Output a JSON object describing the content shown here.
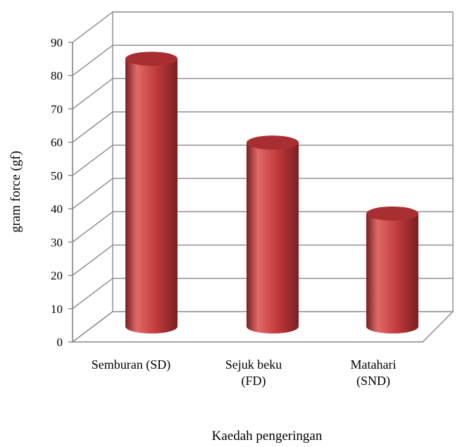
{
  "chart_data": {
    "type": "bar",
    "style": "3d-cylinder",
    "categories": [
      [
        "Semburan (SD)"
      ],
      [
        "Sejuk beku",
        "(FD)"
      ],
      [
        "Matahari",
        "(SND)"
      ]
    ],
    "values": [
      83,
      57,
      35
    ],
    "xlabel": "Kaedah pengeringan",
    "ylabel": "gram force (gf)",
    "ylim": [
      0,
      90
    ],
    "yticks": [
      0,
      10,
      20,
      30,
      40,
      50,
      60,
      70,
      80,
      90
    ],
    "grid": true,
    "bar_color": "#c0393b",
    "bar_highlight": "#e06a68",
    "bar_shadow": "#7a1f22",
    "top_color": "#a82e31"
  }
}
